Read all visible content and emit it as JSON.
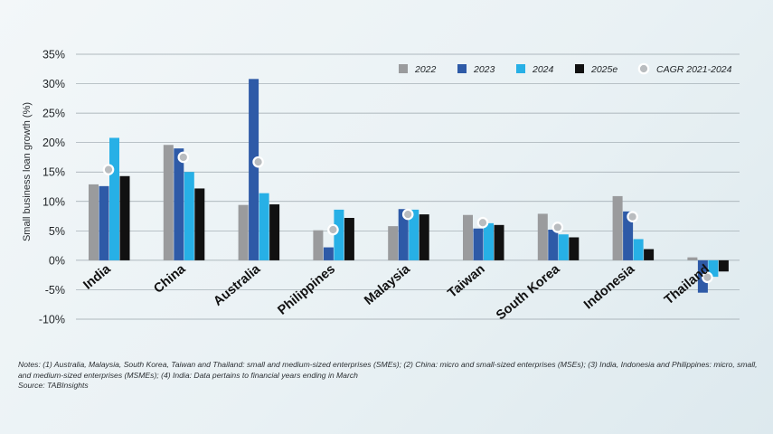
{
  "chart_data": {
    "type": "bar",
    "title": "",
    "xlabel": "",
    "ylabel": "Small business loan growth (%)",
    "ylim": [
      -10,
      35
    ],
    "yticks": [
      -10,
      -5,
      0,
      5,
      10,
      15,
      20,
      25,
      30,
      35
    ],
    "ytick_labels": [
      "-10%",
      "-5%",
      "0%",
      "5%",
      "10%",
      "15%",
      "20%",
      "25%",
      "30%",
      "35%"
    ],
    "grid": true,
    "legend_position": "top-right",
    "categories": [
      "India",
      "China",
      "Australia",
      "Philippines",
      "Malaysia",
      "Taiwan",
      "South Korea",
      "Indonesia",
      "Thailand"
    ],
    "series": [
      {
        "name": "2022",
        "color": "#9a9b9d",
        "values": [
          12.9,
          19.6,
          9.4,
          5.1,
          5.8,
          7.7,
          7.9,
          10.9,
          0.5
        ]
      },
      {
        "name": "2023",
        "color": "#2e5aa7",
        "values": [
          12.6,
          19.0,
          30.8,
          2.2,
          8.7,
          5.4,
          5.2,
          8.3,
          -5.5
        ]
      },
      {
        "name": "2024",
        "color": "#27b0e6",
        "values": [
          20.8,
          15.0,
          11.4,
          8.6,
          8.6,
          6.3,
          4.4,
          3.6,
          -2.8
        ]
      },
      {
        "name": "2025e",
        "color": "#111111",
        "values": [
          14.3,
          12.2,
          9.5,
          7.2,
          7.8,
          6.0,
          3.9,
          1.9,
          -1.9
        ]
      }
    ],
    "markers": {
      "name": "CAGR 2021-2024",
      "color": "#b9bcbf",
      "values": [
        15.4,
        17.5,
        16.7,
        5.2,
        7.8,
        6.4,
        5.6,
        7.4,
        -2.9
      ]
    }
  },
  "notes": {
    "line1": "Notes: (1) Australia, Malaysia, South Korea, Taiwan and Thailand: small and medium-sized enterprises (SMEs); (2) China: micro and small-sized enterprises (MSEs); (3) India, Indonesia and Philippines: micro, small,",
    "line2": "and medium-sized enterprises (MSMEs); (4) India: Data pertains to financial years ending in March",
    "source": "Source: TABInsights"
  }
}
